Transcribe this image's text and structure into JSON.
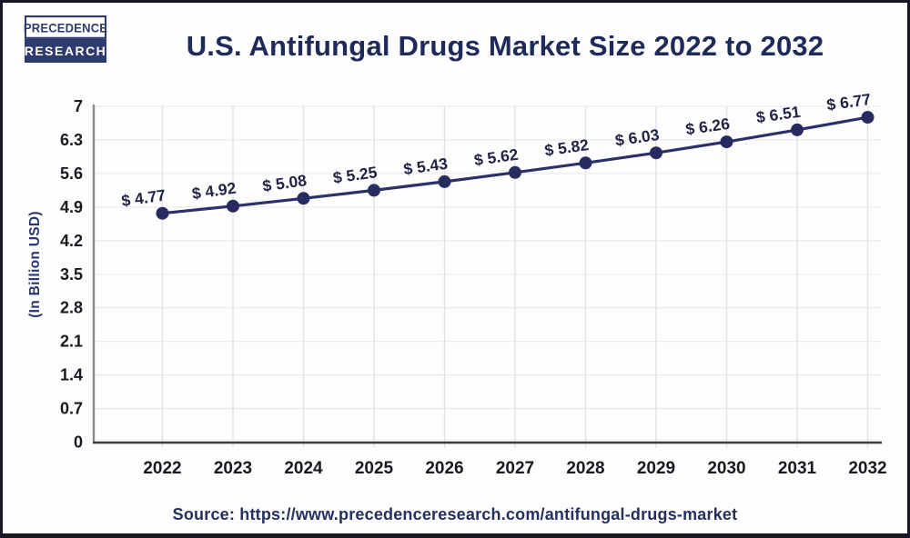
{
  "header": {
    "logo": {
      "line1": "PRECEDENCE",
      "line2": "RESEARCH"
    },
    "title": "U.S. Antifungal Drugs Market Size 2022 to 2032"
  },
  "chart_data": {
    "type": "line",
    "title": "U.S. Antifungal Drugs Market Size 2022 to 2032",
    "categories": [
      "2022",
      "2023",
      "2024",
      "2025",
      "2026",
      "2027",
      "2028",
      "2029",
      "2030",
      "2031",
      "2032"
    ],
    "series": [
      {
        "name": "U.S. Antifungal Drugs Market Size",
        "values": [
          4.77,
          4.92,
          5.08,
          5.25,
          5.43,
          5.62,
          5.82,
          6.03,
          6.26,
          6.51,
          6.77
        ]
      }
    ],
    "point_labels": [
      "$ 4.77",
      "$ 4.92",
      "$ 5.08",
      "$ 5.25",
      "$ 5.43",
      "$ 5.62",
      "$ 5.82",
      "$ 6.03",
      "$ 6.26",
      "$ 6.51",
      "$ 6.77"
    ],
    "xlabel": "",
    "ylabel": "(In Billion USD)",
    "ylim": [
      0,
      7
    ],
    "ytick_labels": [
      "0",
      "0.7",
      "1.4",
      "2.1",
      "2.8",
      "3.5",
      "4.2",
      "4.9",
      "5.6",
      "6.3",
      "7"
    ],
    "grid": true,
    "legend": "none",
    "colors": {
      "line": "#2a3068",
      "marker": "#272c60",
      "point_label": "#1f2444",
      "tick_label": "#19191f",
      "axis_title": "#2c366e",
      "y_axis_line": "#8a8b90",
      "x_axis_line": "#3a3b40",
      "gridline_h": "#ebebee",
      "gridline_v": "#e0e1e5",
      "title": "#1e2a5a",
      "source": "#25305f",
      "logo_navy": "#2e3b6e"
    }
  },
  "footer": {
    "source": "Source: https://www.precedenceresearch.com/antifungal-drugs-market"
  }
}
